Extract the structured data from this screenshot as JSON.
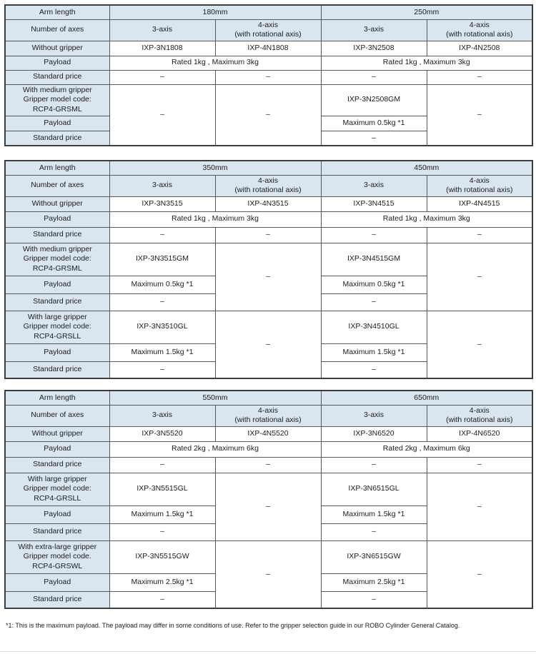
{
  "colors": {
    "header_bg": "#d9e6ef",
    "border": "#58595b",
    "outer_border": "#3d3d3f",
    "text": "#1c1c1e"
  },
  "labels": {
    "arm_length": "Arm length",
    "number_of_axes": "Number of axes",
    "without_gripper": "Without gripper",
    "payload": "Payload",
    "standard_price": "Standard price",
    "axis3": "3-axis",
    "axis4_line1": "4-axis",
    "axis4_line2": "(with rotational axis)"
  },
  "tables": [
    {
      "arm_lengths": [
        "180mm",
        "250mm"
      ],
      "without_gripper": [
        "IXP-3N1808",
        "IXP-4N1808",
        "IXP-3N2508",
        "IXP-4N2508"
      ],
      "payload": [
        "Rated 1kg , Maximum 3kg",
        "Rated 1kg , Maximum 3kg"
      ],
      "standard_price": [
        "–",
        "–",
        "–",
        "–"
      ],
      "groups": [
        {
          "label_lines": [
            "With medium gripper",
            "Gripper model code:",
            "RCP4-GRSML"
          ],
          "col0": {
            "merged": "–"
          },
          "col1": {
            "merged": "–"
          },
          "col2": {
            "model": "IXP-3N2508GM",
            "payload": "Maximum 0.5kg *1",
            "price": "–"
          },
          "col3": {
            "merged": "–"
          }
        }
      ]
    },
    {
      "arm_lengths": [
        "350mm",
        "450mm"
      ],
      "without_gripper": [
        "IXP-3N3515",
        "IXP-4N3515",
        "IXP-3N4515",
        "IXP-4N4515"
      ],
      "payload": [
        "Rated 1kg , Maximum 3kg",
        "Rated 1kg , Maximum 3kg"
      ],
      "standard_price": [
        "–",
        "–",
        "–",
        "–"
      ],
      "groups": [
        {
          "label_lines": [
            "With medium gripper",
            "Gripper model code:",
            "RCP4-GRSML"
          ],
          "col0": {
            "model": "IXP-3N3515GM",
            "payload": "Maximum 0.5kg *1",
            "price": "–"
          },
          "col1": {
            "merged": "–"
          },
          "col2": {
            "model": "IXP-3N4515GM",
            "payload": "Maximum 0.5kg *1",
            "price": "–"
          },
          "col3": {
            "merged": "–"
          }
        },
        {
          "label_lines": [
            "With large gripper",
            "Gripper model code:",
            "RCP4-GRSLL"
          ],
          "col0": {
            "model": "IXP-3N3510GL",
            "payload": "Maximum 1.5kg *1",
            "price": "–"
          },
          "col1": {
            "merged": "–"
          },
          "col2": {
            "model": "IXP-3N4510GL",
            "payload": "Maximum 1.5kg *1",
            "price": "–"
          },
          "col3": {
            "merged": "–"
          }
        }
      ]
    },
    {
      "arm_lengths": [
        "550mm",
        "650mm"
      ],
      "without_gripper": [
        "IXP-3N5520",
        "IXP-4N5520",
        "IXP-3N6520",
        "IXP-4N6520"
      ],
      "payload": [
        "Rated 2kg , Maximum 6kg",
        "Rated 2kg , Maximum 6kg"
      ],
      "standard_price": [
        "–",
        "–",
        "–",
        "–"
      ],
      "groups": [
        {
          "label_lines": [
            "With large gripper",
            "Gripper model code:",
            "RCP4-GRSLL"
          ],
          "col0": {
            "model": "IXP-3N5515GL",
            "payload": "Maximum 1.5kg *1",
            "price": "–"
          },
          "col1": {
            "merged": "–"
          },
          "col2": {
            "model": "IXP-3N6515GL",
            "payload": "Maximum 1.5kg *1",
            "price": "–"
          },
          "col3": {
            "merged": "–"
          }
        },
        {
          "label_lines": [
            "With extra-large gripper",
            "Gripper model code.",
            "RCP4-GRSWL"
          ],
          "col0": {
            "model": "IXP-3N5515GW",
            "payload": "Maximum 2.5kg *1",
            "price": "–"
          },
          "col1": {
            "merged": "–"
          },
          "col2": {
            "model": "IXP-3N6515GW",
            "payload": "Maximum 2.5kg *1",
            "price": "–"
          },
          "col3": {
            "merged": "–"
          }
        }
      ]
    }
  ],
  "page": {
    "footnote": "*1: This is the maximum payload. The payload may differ in some conditions of use. Refer to the gripper selection guide in our ROBO Cylinder General Catalog."
  }
}
